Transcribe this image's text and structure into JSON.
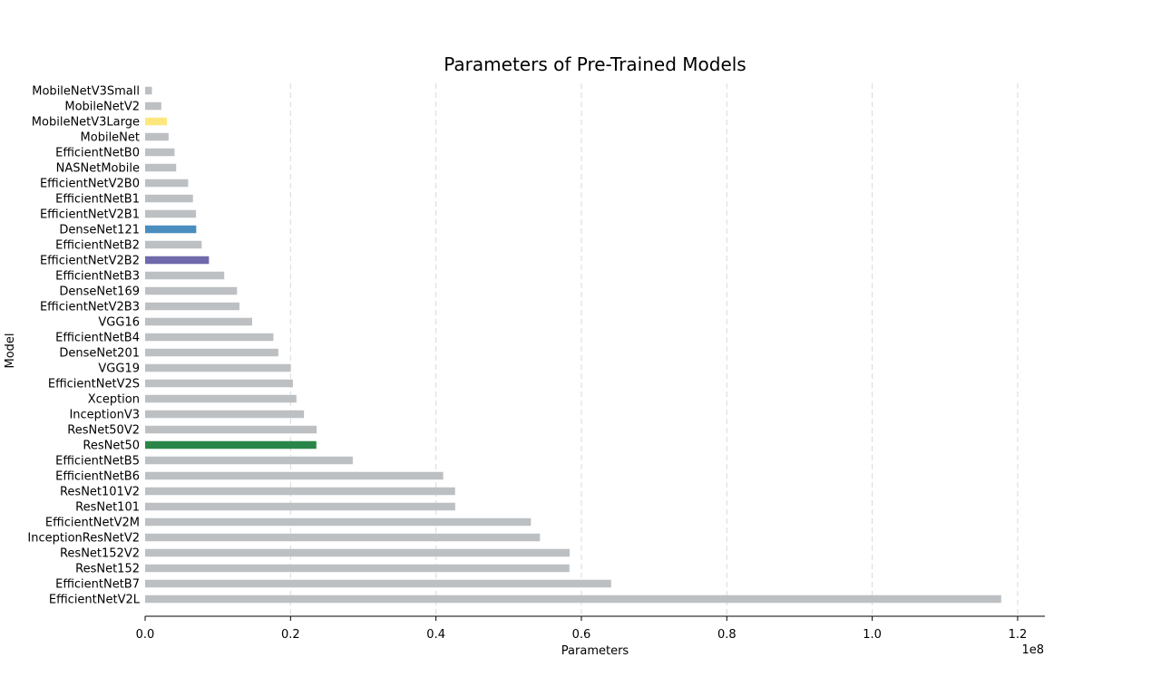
{
  "chart_data": {
    "type": "bar",
    "orientation": "horizontal",
    "title": "Parameters of Pre-Trained Models",
    "xlabel": "Parameters",
    "ylabel": "Model",
    "x_offset_text": "1e8",
    "x_scale_factor": 100000000,
    "xlim": [
      0,
      1.2375
    ],
    "x_ticks": [
      0.0,
      0.2,
      0.4,
      0.6,
      0.8,
      1.0,
      1.2
    ],
    "x_tick_labels": [
      "0.0",
      "0.2",
      "0.4",
      "0.6",
      "0.8",
      "1.0",
      "1.2"
    ],
    "grid": "x-dashed",
    "legend": "none",
    "categories": [
      "MobileNetV3Small",
      "MobileNetV2",
      "MobileNetV3Large",
      "MobileNet",
      "EfficientNetB0",
      "NASNetMobile",
      "EfficientNetV2B0",
      "EfficientNetB1",
      "EfficientNetV2B1",
      "DenseNet121",
      "EfficientNetB2",
      "EfficientNetV2B2",
      "EfficientNetB3",
      "DenseNet169",
      "EfficientNetV2B3",
      "VGG16",
      "EfficientNetB4",
      "DenseNet201",
      "VGG19",
      "EfficientNetV2S",
      "Xception",
      "InceptionV3",
      "ResNet50V2",
      "ResNet50",
      "EfficientNetB5",
      "EfficientNetB6",
      "ResNet101V2",
      "ResNet101",
      "EfficientNetV2M",
      "InceptionResNetV2",
      "ResNet152V2",
      "ResNet152",
      "EfficientNetB7",
      "EfficientNetV2L"
    ],
    "values": [
      0.0094,
      0.0223,
      0.0299,
      0.0323,
      0.0405,
      0.0427,
      0.0592,
      0.0658,
      0.07,
      0.0703,
      0.0778,
      0.0878,
      0.1088,
      0.1264,
      0.1298,
      0.1472,
      0.1764,
      0.1832,
      0.2002,
      0.2033,
      0.2081,
      0.2185,
      0.2359,
      0.2355,
      0.2856,
      0.41,
      0.4263,
      0.4265,
      0.5306,
      0.543,
      0.5838,
      0.5836,
      0.6409,
      1.1774
    ],
    "colors": {
      "default": "#bdc0c3",
      "highlight": {
        "MobileNetV3Large": "#fde77c",
        "DenseNet121": "#4a8dbe",
        "EfficientNetV2B2": "#7069ab",
        "ResNet50": "#2a8648"
      }
    }
  }
}
